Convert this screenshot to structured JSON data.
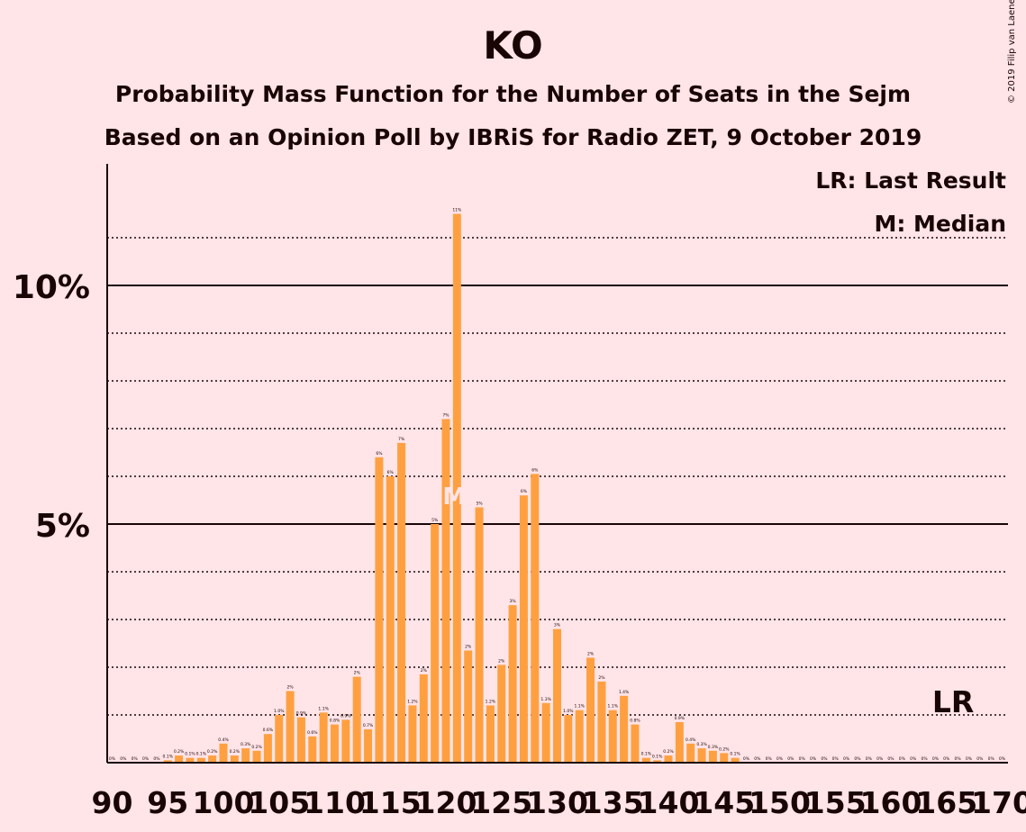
{
  "chart_data": {
    "type": "bar",
    "title": "KO",
    "subtitle": "Probability Mass Function for the Number of Seats in the Sejm",
    "subtitle2": "Based on an Opinion Poll by IBRiS for Radio ZET, 9 October 2019",
    "copyright": "© 2019 Filip van Laenen",
    "legend": [
      "LR: Last Result",
      "M: Median"
    ],
    "x_start": 90,
    "x_end": 170,
    "xticks": [
      90,
      95,
      100,
      105,
      110,
      115,
      120,
      125,
      130,
      135,
      140,
      145,
      150,
      155,
      160,
      165,
      170
    ],
    "yticks": [
      {
        "value": 5,
        "label": "5%"
      },
      {
        "value": 10,
        "label": "10%"
      }
    ],
    "ylim": [
      0,
      12.5
    ],
    "values": [
      0,
      0,
      0,
      0,
      0,
      0.05,
      0.15,
      0.1,
      0.1,
      0.15,
      0.4,
      0.15,
      0.3,
      0.25,
      0.6,
      1.0,
      1.5,
      0.95,
      0.55,
      1.05,
      0.8,
      0.9,
      1.8,
      0.7,
      6.4,
      6.0,
      6.7,
      1.2,
      1.85,
      5.0,
      7.2,
      11.5,
      2.35,
      5.35,
      1.2,
      2.05,
      3.3,
      5.6,
      6.05,
      1.25,
      2.8,
      1.0,
      1.1,
      2.2,
      1.7,
      1.1,
      1.4,
      0.8,
      0.1,
      0.05,
      0.15,
      0.85,
      0.4,
      0.3,
      0.25,
      0.2,
      0.1,
      0,
      0,
      0,
      0,
      0,
      0,
      0,
      0,
      0,
      0,
      0,
      0,
      0,
      0,
      0,
      0,
      0,
      0,
      0,
      0,
      0,
      0,
      0,
      0
    ],
    "bar_labels": [
      "0%",
      "0%",
      "0%",
      "0%",
      "0%",
      "0.1%",
      "0.2%",
      "0.1%",
      "0.1%",
      "0.2%",
      "0.4%",
      "0.2%",
      "0.3%",
      "0.2%",
      "0.6%",
      "1.0%",
      "2%",
      "0.9%",
      "0.6%",
      "1.1%",
      "0.8%",
      "0.9%",
      "2%",
      "0.7%",
      "6%",
      "6%",
      "7%",
      "1.2%",
      "2%",
      "5%",
      "7%",
      "11%",
      "2%",
      "5%",
      "1.2%",
      "2%",
      "3%",
      "6%",
      "6%",
      "1.3%",
      "3%",
      "1.0%",
      "1.1%",
      "2%",
      "2%",
      "1.1%",
      "1.4%",
      "0.8%",
      "0.1%",
      "0.1%",
      "0.2%",
      "0.9%",
      "0.4%",
      "0.3%",
      "0.3%",
      "0.2%",
      "0.1%",
      "0%",
      "0%",
      "0%",
      "0%",
      "0%",
      "0%",
      "0%",
      "0%",
      "0%",
      "0%",
      "0%",
      "0%",
      "0%",
      "0%",
      "0%",
      "0%",
      "0%",
      "0%",
      "0%",
      "0%",
      "0%",
      "0%",
      "0%",
      "0%"
    ],
    "median": {
      "seat": 121,
      "label": "M"
    },
    "last_result": {
      "seat": 166,
      "value": 1.0,
      "label": "LR"
    },
    "colors": {
      "bar": "#FFA040",
      "background": "#FFE4E8",
      "text": "#1a0505",
      "median_label": "#FFE4E8"
    }
  }
}
